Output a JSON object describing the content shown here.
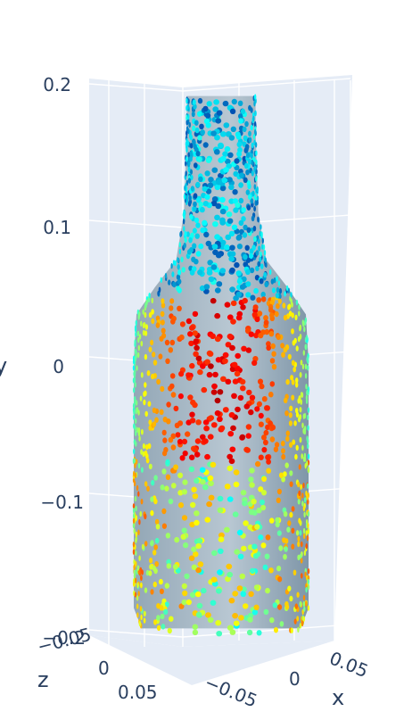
{
  "chart_data": {
    "type": "scatter3d",
    "title": "",
    "axes": {
      "x": {
        "title": "x",
        "ticks": [
          "−0.05",
          "0",
          "0.05"
        ],
        "range": [
          -0.07,
          0.07
        ]
      },
      "y": {
        "title": "y",
        "ticks": [
          "−0.2",
          "−0.1",
          "0",
          "0.1",
          "0.2"
        ],
        "range": [
          -0.2,
          0.2
        ]
      },
      "z": {
        "title": "z",
        "ticks": [
          "−0.05",
          "0",
          "0.05"
        ],
        "range": [
          -0.07,
          0.07
        ]
      }
    },
    "grid": true,
    "background": "#e5ecf6",
    "marker_colorscale": "Jet",
    "surface_color": "#a9b8c4",
    "object": "bottle",
    "bottle_profile": [
      {
        "y": -0.195,
        "r": 0.06
      },
      {
        "y": -0.18,
        "r": 0.066
      },
      {
        "y": -0.1,
        "r": 0.066
      },
      {
        "y": 0.0,
        "r": 0.066
      },
      {
        "y": 0.035,
        "r": 0.064
      },
      {
        "y": 0.055,
        "r": 0.05
      },
      {
        "y": 0.075,
        "r": 0.034
      },
      {
        "y": 0.11,
        "r": 0.028
      },
      {
        "y": 0.17,
        "r": 0.026
      },
      {
        "y": 0.195,
        "r": 0.026
      }
    ]
  }
}
